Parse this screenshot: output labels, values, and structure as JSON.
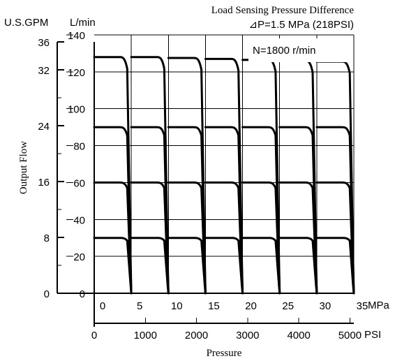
{
  "chart_data": {
    "type": "line",
    "title": "Load Sensing Pressure Difference",
    "subtitle": "⊿P=1.5 MPa (218PSI)",
    "annotation": "N=1800 r/min",
    "ylabel": "Output Flow",
    "xlabel": "Pressure",
    "y_unit_primary": "L/min",
    "y_unit_secondary": "U.S.GPM",
    "x_unit_primary": "MPa",
    "x_unit_secondary": "PSI",
    "ylim": [
      0,
      140
    ],
    "xlim": [
      0,
      35
    ],
    "grid": true,
    "y_ticks_lmin": [
      "0",
      "20",
      "40",
      "60",
      "80",
      "100",
      "120",
      "140"
    ],
    "y_ticks_gpm": [
      "0",
      "8",
      "16",
      "24",
      "32",
      "36"
    ],
    "x_ticks_mpa": [
      "0",
      "5",
      "10",
      "15",
      "20",
      "25",
      "30",
      "35"
    ],
    "x_ticks_psi": [
      "0",
      "1000",
      "2000",
      "3000",
      "4000",
      "5000"
    ],
    "cutoff_pressures_mpa": [
      5,
      10,
      15,
      20,
      25,
      30,
      35
    ],
    "flow_levels_lmin": [
      128,
      90,
      60,
      30
    ],
    "series": [
      {
        "cutoff_mpa": 5,
        "max_flow_lmin": [
          128,
          90,
          60,
          30
        ]
      },
      {
        "cutoff_mpa": 10,
        "max_flow_lmin": [
          128,
          90,
          60,
          30
        ]
      },
      {
        "cutoff_mpa": 15,
        "max_flow_lmin": [
          127.5,
          90,
          60,
          30
        ]
      },
      {
        "cutoff_mpa": 20,
        "max_flow_lmin": [
          127,
          90,
          60,
          30
        ]
      },
      {
        "cutoff_mpa": 25,
        "max_flow_lmin": [
          126.5,
          90,
          60,
          30
        ]
      },
      {
        "cutoff_mpa": 30,
        "max_flow_lmin": [
          126,
          90,
          60,
          30
        ]
      },
      {
        "cutoff_mpa": 35,
        "max_flow_lmin": [
          125.5,
          90,
          60,
          30
        ]
      }
    ]
  }
}
